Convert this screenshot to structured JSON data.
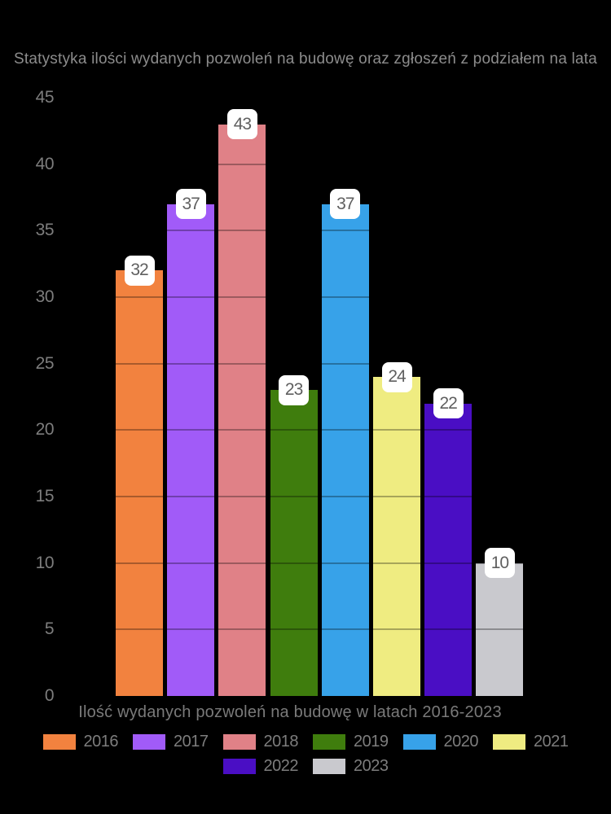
{
  "title": "Statystyka ilości wydanych pozwoleń na budowę oraz zgłoszeń z podziałem na lata",
  "chart_data": {
    "type": "bar",
    "title": "Statystyka ilości wydanych pozwoleń na budowę oraz zgłoszeń z podziałem na lata",
    "xlabel": "Ilość wydanych pozwoleń na budowę w latach 2016-2023",
    "ylabel": "",
    "categories": [
      "2016",
      "2017",
      "2018",
      "2019",
      "2020",
      "2021",
      "2022",
      "2023"
    ],
    "values": [
      32,
      37,
      43,
      23,
      37,
      24,
      22,
      10
    ],
    "colors": [
      "#F2823F",
      "#A15BF8",
      "#E08187",
      "#3F7D0D",
      "#37A2E9",
      "#EFEC81",
      "#4A0EC4",
      "#C9C9CE"
    ],
    "data_labels": [
      "32",
      "37",
      "43",
      "23",
      "37",
      "24",
      "22",
      "10"
    ],
    "ylim": [
      0,
      45
    ],
    "y_ticks": [
      0,
      5,
      10,
      15,
      20,
      25,
      30,
      35,
      40,
      45
    ],
    "grid": "subtle dark tick lines over bars",
    "legend_position": "bottom",
    "background_color": "#000000",
    "text_color": "#8c8c8c",
    "value_label_style": {
      "background": "#ffffff",
      "text_color": "#5f5f5f"
    }
  },
  "legend": {
    "items": [
      {
        "label": "2016",
        "color": "#F2823F"
      },
      {
        "label": "2017",
        "color": "#A15BF8"
      },
      {
        "label": "2018",
        "color": "#E08187"
      },
      {
        "label": "2019",
        "color": "#3F7D0D"
      },
      {
        "label": "2020",
        "color": "#37A2E9"
      },
      {
        "label": "2021",
        "color": "#EFEC81"
      },
      {
        "label": "2022",
        "color": "#4A0EC4"
      },
      {
        "label": "2023",
        "color": "#C9C9CE"
      }
    ]
  }
}
